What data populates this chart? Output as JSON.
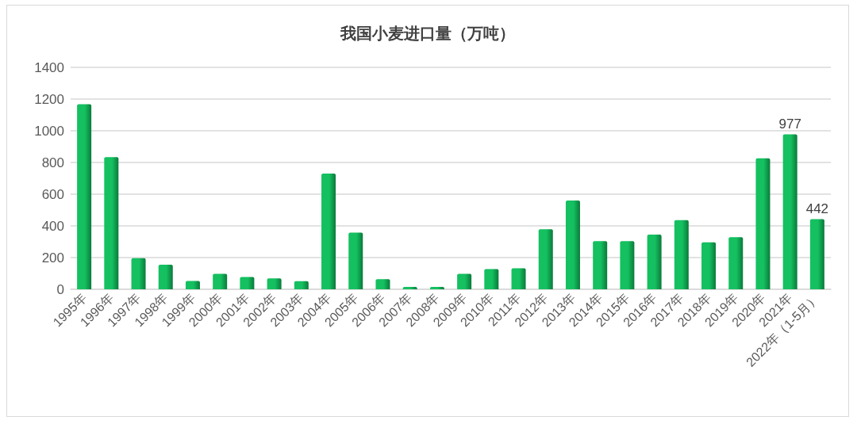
{
  "chart_data": {
    "type": "bar",
    "title": "我国小麦进口量（万吨）",
    "categories": [
      "1995年",
      "1996年",
      "1997年",
      "1998年",
      "1999年",
      "2000年",
      "2001年",
      "2002年",
      "2003年",
      "2004年",
      "2005年",
      "2006年",
      "2007年",
      "2008年",
      "2009年",
      "2010年",
      "2011年",
      "2012年",
      "2013年",
      "2014年",
      "2015年",
      "2016年",
      "2017年",
      "2018年",
      "2019年",
      "2020年",
      "2021年",
      "2022年（1-5月）"
    ],
    "values": [
      1167,
      834,
      196,
      155,
      53,
      97,
      78,
      69,
      51,
      730,
      358,
      64,
      15,
      15,
      97,
      127,
      132,
      379,
      560,
      304,
      304,
      345,
      436,
      296,
      329,
      826,
      977,
      442
    ],
    "value_labels": [
      null,
      null,
      null,
      null,
      null,
      null,
      null,
      null,
      null,
      null,
      null,
      null,
      null,
      null,
      null,
      null,
      null,
      null,
      null,
      null,
      null,
      null,
      null,
      null,
      null,
      null,
      "977",
      "442"
    ],
    "color": "#14c060",
    "ylim": [
      0,
      1400
    ],
    "yticks": [
      0,
      200,
      400,
      600,
      800,
      1000,
      1200,
      1400
    ],
    "grid": "y"
  }
}
